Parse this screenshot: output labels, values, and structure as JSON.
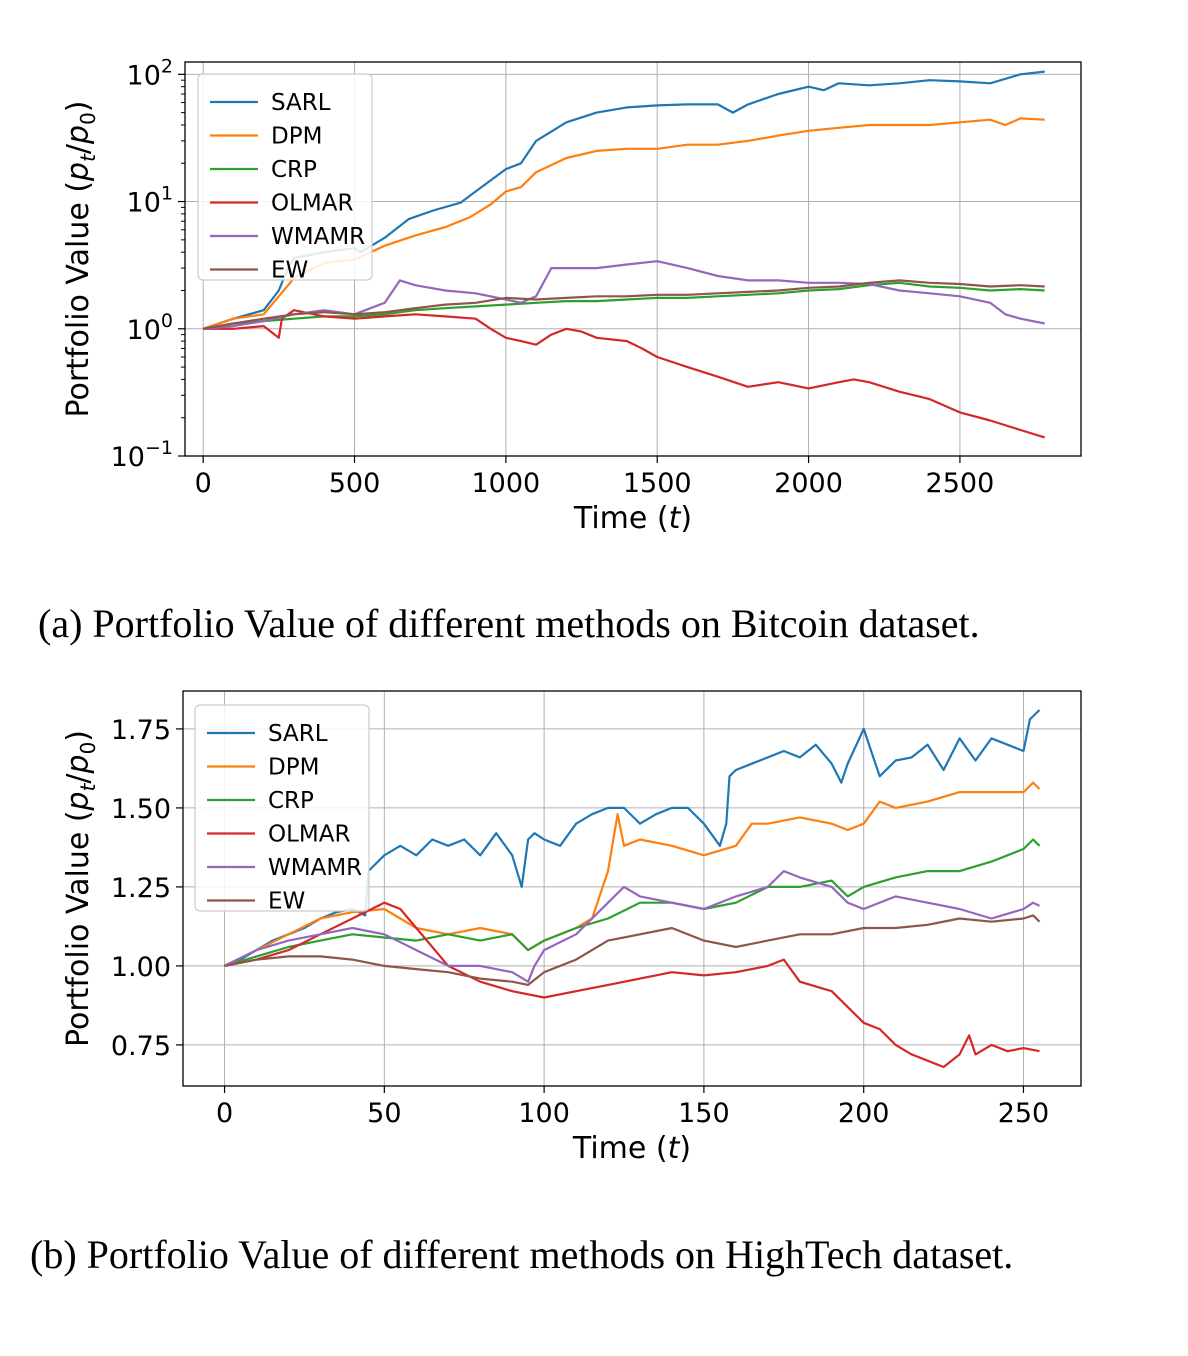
{
  "chart_data": [
    {
      "type": "line",
      "caption": "(a) Portfolio Value of different methods on Bitcoin dataset.",
      "xlabel": "Time (t)",
      "ylabel": "Portfolio Value (pt/p0)",
      "yscale": "log",
      "xlim": [
        -60,
        2900
      ],
      "ylim": [
        0.1,
        125
      ],
      "xticks": [
        0,
        500,
        1000,
        1500,
        2000,
        2500
      ],
      "yticks": [
        {
          "value": 0.1,
          "base": "10",
          "exp": "−1"
        },
        {
          "value": 1,
          "base": "10",
          "exp": "0"
        },
        {
          "value": 10,
          "base": "10",
          "exp": "1"
        },
        {
          "value": 100,
          "base": "10",
          "exp": "2"
        }
      ],
      "grid": true,
      "legend": "top-left",
      "series": [
        {
          "name": "SARL",
          "color": "#1f77b4",
          "x": [
            0,
            100,
            200,
            250,
            280,
            300,
            400,
            500,
            520,
            600,
            680,
            760,
            850,
            900,
            1000,
            1050,
            1100,
            1200,
            1300,
            1400,
            1500,
            1600,
            1700,
            1750,
            1800,
            1900,
            2000,
            2050,
            2100,
            2200,
            2300,
            2400,
            2500,
            2600,
            2700,
            2780
          ],
          "y": [
            1,
            1.2,
            1.4,
            2.0,
            3.0,
            3.6,
            4.0,
            4.3,
            4.0,
            5.2,
            7.3,
            8.5,
            9.8,
            12,
            18,
            20,
            30,
            42,
            50,
            55,
            57,
            58,
            58,
            50,
            58,
            70,
            80,
            75,
            85,
            82,
            85,
            90,
            88,
            85,
            100,
            105
          ]
        },
        {
          "name": "DPM",
          "color": "#ff7f0e",
          "x": [
            0,
            100,
            200,
            250,
            300,
            400,
            500,
            600,
            700,
            800,
            880,
            950,
            1000,
            1050,
            1100,
            1200,
            1300,
            1400,
            1500,
            1600,
            1700,
            1800,
            1900,
            2000,
            2100,
            2200,
            2300,
            2400,
            2500,
            2600,
            2650,
            2700,
            2780
          ],
          "y": [
            1,
            1.2,
            1.3,
            1.8,
            2.5,
            3.3,
            3.5,
            4.5,
            5.4,
            6.3,
            7.5,
            9.5,
            12,
            13,
            17,
            22,
            25,
            26,
            26,
            28,
            28,
            30,
            33,
            36,
            38,
            40,
            40,
            40,
            42,
            44,
            40,
            45,
            44
          ]
        },
        {
          "name": "CRP",
          "color": "#2ca02c",
          "x": [
            0,
            100,
            200,
            300,
            400,
            500,
            600,
            700,
            800,
            900,
            1000,
            1100,
            1200,
            1300,
            1400,
            1500,
            1600,
            1700,
            1800,
            1900,
            2000,
            2100,
            2200,
            2300,
            2400,
            2500,
            2600,
            2700,
            2780
          ],
          "y": [
            1,
            1.1,
            1.15,
            1.2,
            1.25,
            1.25,
            1.3,
            1.4,
            1.45,
            1.5,
            1.55,
            1.6,
            1.65,
            1.65,
            1.7,
            1.75,
            1.75,
            1.8,
            1.85,
            1.9,
            2.0,
            2.05,
            2.2,
            2.3,
            2.15,
            2.1,
            2.0,
            2.05,
            2.0
          ]
        },
        {
          "name": "OLMAR",
          "color": "#d62728",
          "x": [
            0,
            100,
            200,
            250,
            260,
            300,
            400,
            500,
            600,
            700,
            800,
            900,
            950,
            1000,
            1050,
            1100,
            1150,
            1200,
            1250,
            1300,
            1400,
            1450,
            1500,
            1600,
            1700,
            1800,
            1900,
            2000,
            2100,
            2150,
            2200,
            2300,
            2400,
            2500,
            2600,
            2700,
            2780
          ],
          "y": [
            1,
            1.0,
            1.05,
            0.85,
            1.2,
            1.4,
            1.25,
            1.2,
            1.25,
            1.3,
            1.25,
            1.2,
            1.0,
            0.85,
            0.8,
            0.75,
            0.9,
            1.0,
            0.95,
            0.85,
            0.8,
            0.7,
            0.6,
            0.5,
            0.42,
            0.35,
            0.38,
            0.34,
            0.38,
            0.4,
            0.38,
            0.32,
            0.28,
            0.22,
            0.19,
            0.16,
            0.14
          ]
        },
        {
          "name": "WMAMR",
          "color": "#9467bd",
          "x": [
            0,
            100,
            200,
            300,
            400,
            500,
            600,
            650,
            700,
            800,
            900,
            1000,
            1050,
            1100,
            1150,
            1200,
            1300,
            1400,
            1500,
            1600,
            1700,
            1800,
            1900,
            2000,
            2100,
            2200,
            2300,
            2400,
            2500,
            2600,
            2650,
            2700,
            2780
          ],
          "y": [
            1,
            1.05,
            1.15,
            1.3,
            1.4,
            1.3,
            1.6,
            2.4,
            2.2,
            2.0,
            1.9,
            1.7,
            1.6,
            1.8,
            3.0,
            3.0,
            3.0,
            3.2,
            3.4,
            3.0,
            2.6,
            2.4,
            2.4,
            2.3,
            2.3,
            2.25,
            2.0,
            1.9,
            1.8,
            1.6,
            1.3,
            1.2,
            1.1
          ]
        },
        {
          "name": "EW",
          "color": "#8c564b",
          "x": [
            0,
            100,
            200,
            300,
            400,
            500,
            600,
            700,
            800,
            900,
            1000,
            1100,
            1200,
            1300,
            1400,
            1500,
            1600,
            1700,
            1800,
            1900,
            2000,
            2100,
            2200,
            2300,
            2400,
            2500,
            2600,
            2700,
            2780
          ],
          "y": [
            1,
            1.1,
            1.2,
            1.3,
            1.35,
            1.3,
            1.35,
            1.45,
            1.55,
            1.6,
            1.75,
            1.7,
            1.75,
            1.8,
            1.8,
            1.85,
            1.85,
            1.9,
            1.95,
            2.0,
            2.1,
            2.15,
            2.3,
            2.4,
            2.3,
            2.25,
            2.15,
            2.2,
            2.15
          ]
        }
      ]
    },
    {
      "type": "line",
      "caption": "(b) Portfolio Value of different methods on HighTech dataset.",
      "xlabel": "Time (t)",
      "ylabel": "Portfolio Value (pt/p0)",
      "yscale": "linear",
      "xlim": [
        -13,
        268
      ],
      "ylim": [
        0.62,
        1.87
      ],
      "xticks": [
        0,
        50,
        100,
        150,
        200,
        250
      ],
      "yticks": [
        0.75,
        1.0,
        1.25,
        1.5,
        1.75
      ],
      "ytick_labels": [
        "0.75",
        "1.00",
        "1.25",
        "1.50",
        "1.75"
      ],
      "grid": true,
      "legend": "top-left",
      "series": [
        {
          "name": "SARL",
          "color": "#1f77b4",
          "x": [
            0,
            5,
            10,
            15,
            20,
            25,
            30,
            35,
            40,
            44,
            45,
            50,
            55,
            60,
            65,
            70,
            75,
            80,
            85,
            90,
            93,
            95,
            97,
            100,
            105,
            110,
            115,
            120,
            125,
            130,
            135,
            140,
            145,
            150,
            155,
            157,
            158,
            160,
            165,
            170,
            175,
            180,
            185,
            190,
            193,
            195,
            200,
            205,
            210,
            215,
            220,
            225,
            230,
            235,
            240,
            245,
            250,
            252,
            255
          ],
          "y": [
            1.0,
            1.02,
            1.05,
            1.08,
            1.1,
            1.12,
            1.15,
            1.17,
            1.18,
            1.16,
            1.3,
            1.35,
            1.38,
            1.35,
            1.4,
            1.38,
            1.4,
            1.35,
            1.42,
            1.35,
            1.25,
            1.4,
            1.42,
            1.4,
            1.38,
            1.45,
            1.48,
            1.5,
            1.5,
            1.45,
            1.48,
            1.5,
            1.5,
            1.45,
            1.38,
            1.45,
            1.6,
            1.62,
            1.64,
            1.66,
            1.68,
            1.66,
            1.7,
            1.64,
            1.58,
            1.64,
            1.75,
            1.6,
            1.65,
            1.66,
            1.7,
            1.62,
            1.72,
            1.65,
            1.72,
            1.7,
            1.68,
            1.78,
            1.81
          ]
        },
        {
          "name": "DPM",
          "color": "#ff7f0e",
          "x": [
            0,
            10,
            20,
            30,
            40,
            50,
            60,
            70,
            80,
            90,
            95,
            100,
            105,
            110,
            115,
            120,
            123,
            125,
            130,
            140,
            150,
            160,
            165,
            170,
            180,
            190,
            195,
            200,
            205,
            210,
            220,
            230,
            240,
            250,
            253,
            255
          ],
          "y": [
            1.0,
            1.05,
            1.1,
            1.15,
            1.17,
            1.18,
            1.12,
            1.1,
            1.12,
            1.1,
            1.05,
            1.08,
            1.1,
            1.12,
            1.15,
            1.3,
            1.48,
            1.38,
            1.4,
            1.38,
            1.35,
            1.38,
            1.45,
            1.45,
            1.47,
            1.45,
            1.43,
            1.45,
            1.52,
            1.5,
            1.52,
            1.55,
            1.55,
            1.55,
            1.58,
            1.56
          ]
        },
        {
          "name": "CRP",
          "color": "#2ca02c",
          "x": [
            0,
            10,
            20,
            30,
            40,
            50,
            60,
            70,
            80,
            90,
            95,
            100,
            110,
            120,
            130,
            140,
            150,
            160,
            170,
            180,
            190,
            195,
            200,
            210,
            220,
            230,
            240,
            250,
            253,
            255
          ],
          "y": [
            1.0,
            1.03,
            1.06,
            1.08,
            1.1,
            1.09,
            1.08,
            1.1,
            1.08,
            1.1,
            1.05,
            1.08,
            1.12,
            1.15,
            1.2,
            1.2,
            1.18,
            1.2,
            1.25,
            1.25,
            1.27,
            1.22,
            1.25,
            1.28,
            1.3,
            1.3,
            1.33,
            1.37,
            1.4,
            1.38
          ]
        },
        {
          "name": "OLMAR",
          "color": "#d62728",
          "x": [
            0,
            10,
            20,
            30,
            40,
            50,
            55,
            60,
            70,
            80,
            90,
            100,
            110,
            120,
            130,
            140,
            150,
            160,
            170,
            175,
            180,
            190,
            200,
            205,
            210,
            215,
            220,
            225,
            230,
            233,
            235,
            240,
            245,
            250,
            255
          ],
          "y": [
            1.0,
            1.02,
            1.05,
            1.1,
            1.15,
            1.2,
            1.18,
            1.12,
            1.0,
            0.95,
            0.92,
            0.9,
            0.92,
            0.94,
            0.96,
            0.98,
            0.97,
            0.98,
            1.0,
            1.02,
            0.95,
            0.92,
            0.82,
            0.8,
            0.75,
            0.72,
            0.7,
            0.68,
            0.72,
            0.78,
            0.72,
            0.75,
            0.73,
            0.74,
            0.73
          ]
        },
        {
          "name": "WMAMR",
          "color": "#9467bd",
          "x": [
            0,
            10,
            20,
            30,
            40,
            50,
            60,
            70,
            80,
            90,
            95,
            97,
            100,
            110,
            115,
            120,
            125,
            130,
            140,
            150,
            160,
            170,
            175,
            180,
            190,
            195,
            200,
            210,
            220,
            230,
            240,
            250,
            253,
            255
          ],
          "y": [
            1.0,
            1.05,
            1.08,
            1.1,
            1.12,
            1.1,
            1.05,
            1.0,
            1.0,
            0.98,
            0.95,
            1.0,
            1.05,
            1.1,
            1.15,
            1.2,
            1.25,
            1.22,
            1.2,
            1.18,
            1.22,
            1.25,
            1.3,
            1.28,
            1.25,
            1.2,
            1.18,
            1.22,
            1.2,
            1.18,
            1.15,
            1.18,
            1.2,
            1.19
          ]
        },
        {
          "name": "EW",
          "color": "#8c564b",
          "x": [
            0,
            10,
            20,
            30,
            40,
            50,
            60,
            70,
            80,
            90,
            95,
            100,
            110,
            120,
            130,
            140,
            150,
            160,
            170,
            180,
            190,
            200,
            210,
            220,
            230,
            240,
            250,
            253,
            255
          ],
          "y": [
            1.0,
            1.02,
            1.03,
            1.03,
            1.02,
            1.0,
            0.99,
            0.98,
            0.96,
            0.95,
            0.94,
            0.98,
            1.02,
            1.08,
            1.1,
            1.12,
            1.08,
            1.06,
            1.08,
            1.1,
            1.1,
            1.12,
            1.12,
            1.13,
            1.15,
            1.14,
            1.15,
            1.16,
            1.14
          ]
        }
      ]
    }
  ]
}
